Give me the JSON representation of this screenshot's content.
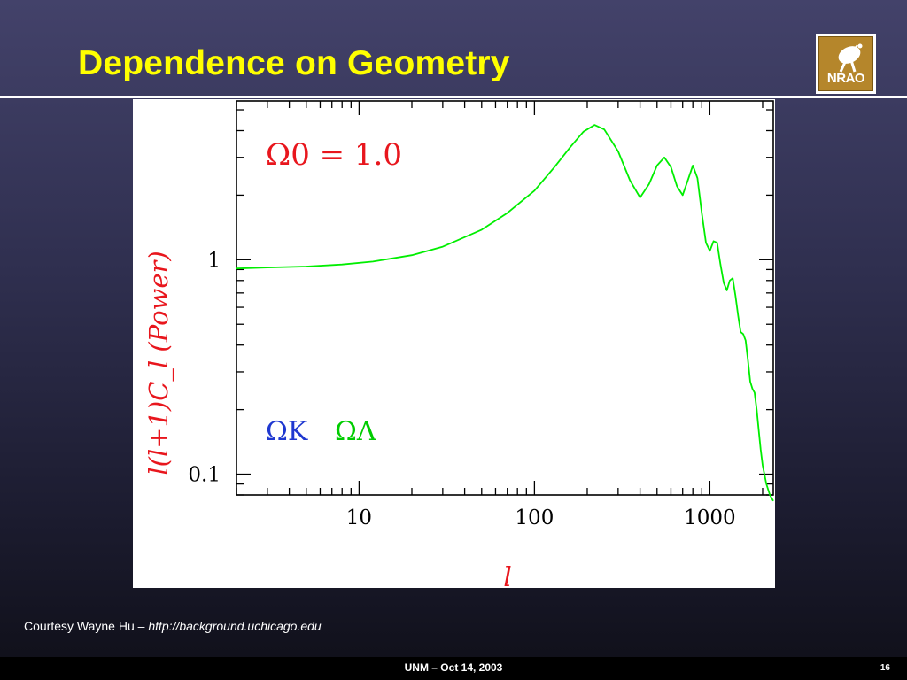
{
  "slide": {
    "title": "Dependence on Geometry",
    "logo_text": "NRAO",
    "credit_prefix": "Courtesy Wayne Hu – ",
    "credit_url": "http://background.uchicago.edu",
    "footer_text": "UNM – Oct 14, 2003",
    "page_number": "16"
  },
  "colors": {
    "title": "#ffff00",
    "curve": "#00ee00",
    "axis_label": "#e8161d",
    "omega_k": "#1f38d0",
    "omega_lambda": "#00cc00"
  },
  "chart_data": {
    "type": "line",
    "x_scale": "log",
    "y_scale": "log",
    "xlim": [
      2,
      2300
    ],
    "ylim": [
      0.08,
      5.5
    ],
    "xticks": [
      10,
      100,
      1000
    ],
    "xtick_labels": [
      "10",
      "100",
      "1000"
    ],
    "yticks": [
      0.1,
      1
    ],
    "ytick_labels": [
      "0.1",
      "1"
    ],
    "xlabel": "l",
    "ylabel": "l(l+1)C_l (Power)",
    "annotations": {
      "omega0": "Ω0 = 1.0",
      "omega_k": "ΩK",
      "omega_lambda": "ΩΛ"
    },
    "grid": false,
    "series": [
      {
        "x": [
          2,
          3,
          5,
          8,
          12,
          20,
          30,
          50,
          70,
          100,
          130,
          160,
          190,
          220,
          250,
          300,
          350,
          400,
          450,
          500,
          550,
          600,
          650,
          700,
          750,
          800,
          850,
          900,
          950,
          1000,
          1050,
          1100,
          1150,
          1200,
          1250,
          1300,
          1350,
          1400,
          1450,
          1500,
          1550,
          1600,
          1650,
          1700,
          1750,
          1800,
          1850,
          1900,
          1950,
          2000,
          2100,
          2200,
          2300
        ],
        "y": [
          0.91,
          0.92,
          0.93,
          0.95,
          0.98,
          1.05,
          1.15,
          1.38,
          1.65,
          2.1,
          2.7,
          3.35,
          3.95,
          4.25,
          4.05,
          3.2,
          2.35,
          1.95,
          2.25,
          2.75,
          3.0,
          2.7,
          2.2,
          2.0,
          2.35,
          2.75,
          2.4,
          1.65,
          1.2,
          1.1,
          1.22,
          1.2,
          0.95,
          0.78,
          0.72,
          0.8,
          0.82,
          0.68,
          0.55,
          0.46,
          0.45,
          0.42,
          0.34,
          0.27,
          0.25,
          0.24,
          0.2,
          0.16,
          0.13,
          0.11,
          0.09,
          0.08,
          0.075
        ]
      }
    ]
  }
}
